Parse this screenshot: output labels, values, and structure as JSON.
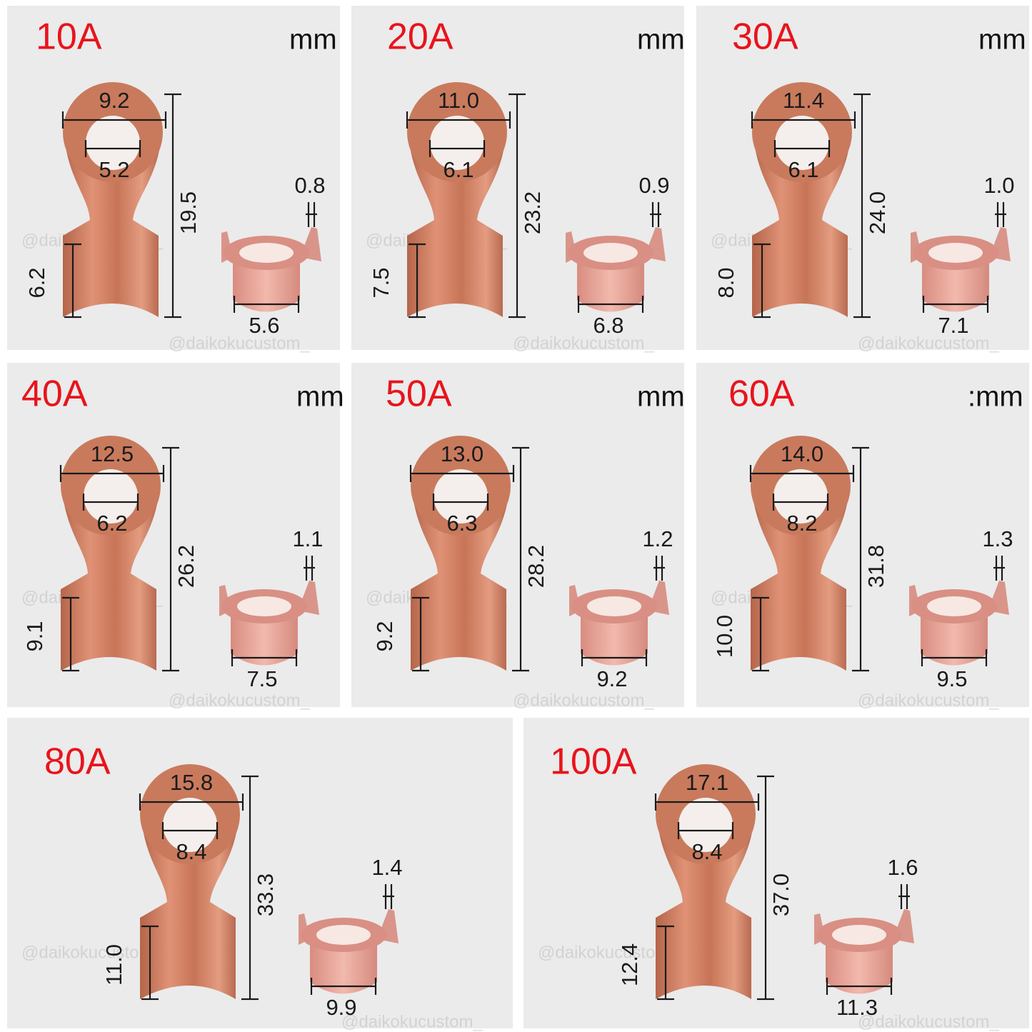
{
  "watermark": "@daikokucustom_",
  "panels": [
    {
      "title": "10A",
      "unit": "mm",
      "dims": {
        "width": "9.2",
        "hole": "5.2",
        "length": "19.5",
        "barrel": "6.2",
        "thickness": "0.8",
        "barrel_width": "5.6"
      }
    },
    {
      "title": "20A",
      "unit": "mm",
      "dims": {
        "width": "11.0",
        "hole": "6.1",
        "length": "23.2",
        "barrel": "7.5",
        "thickness": "0.9",
        "barrel_width": "6.8"
      }
    },
    {
      "title": "30A",
      "unit": "mm",
      "dims": {
        "width": "11.4",
        "hole": "6.1",
        "length": "24.0",
        "barrel": "8.0",
        "thickness": "1.0",
        "barrel_width": "7.1"
      }
    },
    {
      "title": "40A",
      "unit": "mm",
      "dims": {
        "width": "12.5",
        "hole": "6.2",
        "length": "26.2",
        "barrel": "9.1",
        "thickness": "1.1",
        "barrel_width": "7.5"
      }
    },
    {
      "title": "50A",
      "unit": "mm",
      "dims": {
        "width": "13.0",
        "hole": "6.3",
        "length": "28.2",
        "barrel": "9.2",
        "thickness": "1.2",
        "barrel_width": "9.2"
      }
    },
    {
      "title": "60A",
      "unit": ":mm",
      "dims": {
        "width": "14.0",
        "hole": "8.2",
        "length": "31.8",
        "barrel": "10.0",
        "thickness": "1.3",
        "barrel_width": "9.5"
      }
    },
    {
      "title": "80A",
      "dims": {
        "width": "15.8",
        "hole": "8.4",
        "length": "33.3",
        "barrel": "11.0",
        "thickness": "1.4",
        "barrel_width": "9.9"
      }
    },
    {
      "title": "100A",
      "dims": {
        "width": "17.1",
        "hole": "8.4",
        "length": "37.0",
        "barrel": "12.4",
        "thickness": "1.6",
        "barrel_width": "11.3"
      }
    }
  ]
}
